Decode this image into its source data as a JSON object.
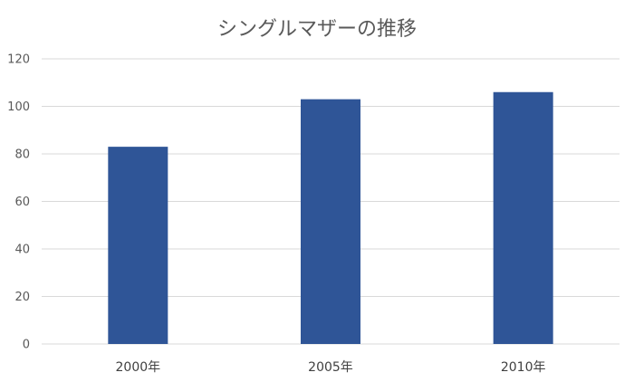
{
  "chart_data": {
    "type": "bar",
    "title": "シングルマザーの推移",
    "categories": [
      "2000年",
      "2005年",
      "2010年"
    ],
    "values": [
      83,
      103,
      106
    ],
    "xlabel": "",
    "ylabel": "",
    "ylim": [
      0,
      120
    ],
    "yticks": [
      0,
      20,
      40,
      60,
      80,
      100,
      120
    ],
    "grid": true,
    "legend": "none",
    "colors": {
      "bar": "#2f5597",
      "grid": "#d9d9d9",
      "axis": "#d9d9d9"
    }
  }
}
